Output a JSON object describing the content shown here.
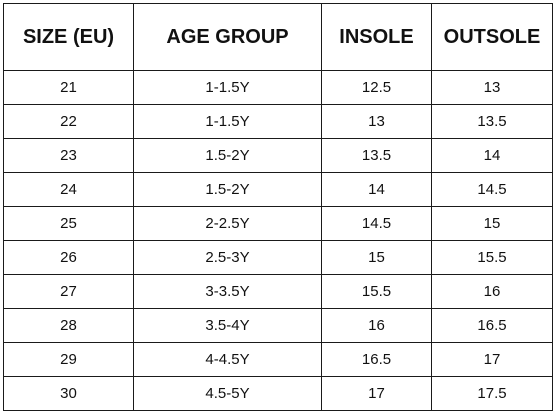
{
  "table": {
    "headers": [
      "SIZE (EU)",
      "AGE GROUP",
      "INSOLE",
      "OUTSOLE"
    ],
    "rows": [
      [
        "21",
        "1-1.5Y",
        "12.5",
        "13"
      ],
      [
        "22",
        "1-1.5Y",
        "13",
        "13.5"
      ],
      [
        "23",
        "1.5-2Y",
        "13.5",
        "14"
      ],
      [
        "24",
        "1.5-2Y",
        "14",
        "14.5"
      ],
      [
        "25",
        "2-2.5Y",
        "14.5",
        "15"
      ],
      [
        "26",
        "2.5-3Y",
        "15",
        "15.5"
      ],
      [
        "27",
        "3-3.5Y",
        "15.5",
        "16"
      ],
      [
        "28",
        "3.5-4Y",
        "16",
        "16.5"
      ],
      [
        "29",
        "4-4.5Y",
        "16.5",
        "17"
      ],
      [
        "30",
        "4.5-5Y",
        "17",
        "17.5"
      ]
    ]
  }
}
